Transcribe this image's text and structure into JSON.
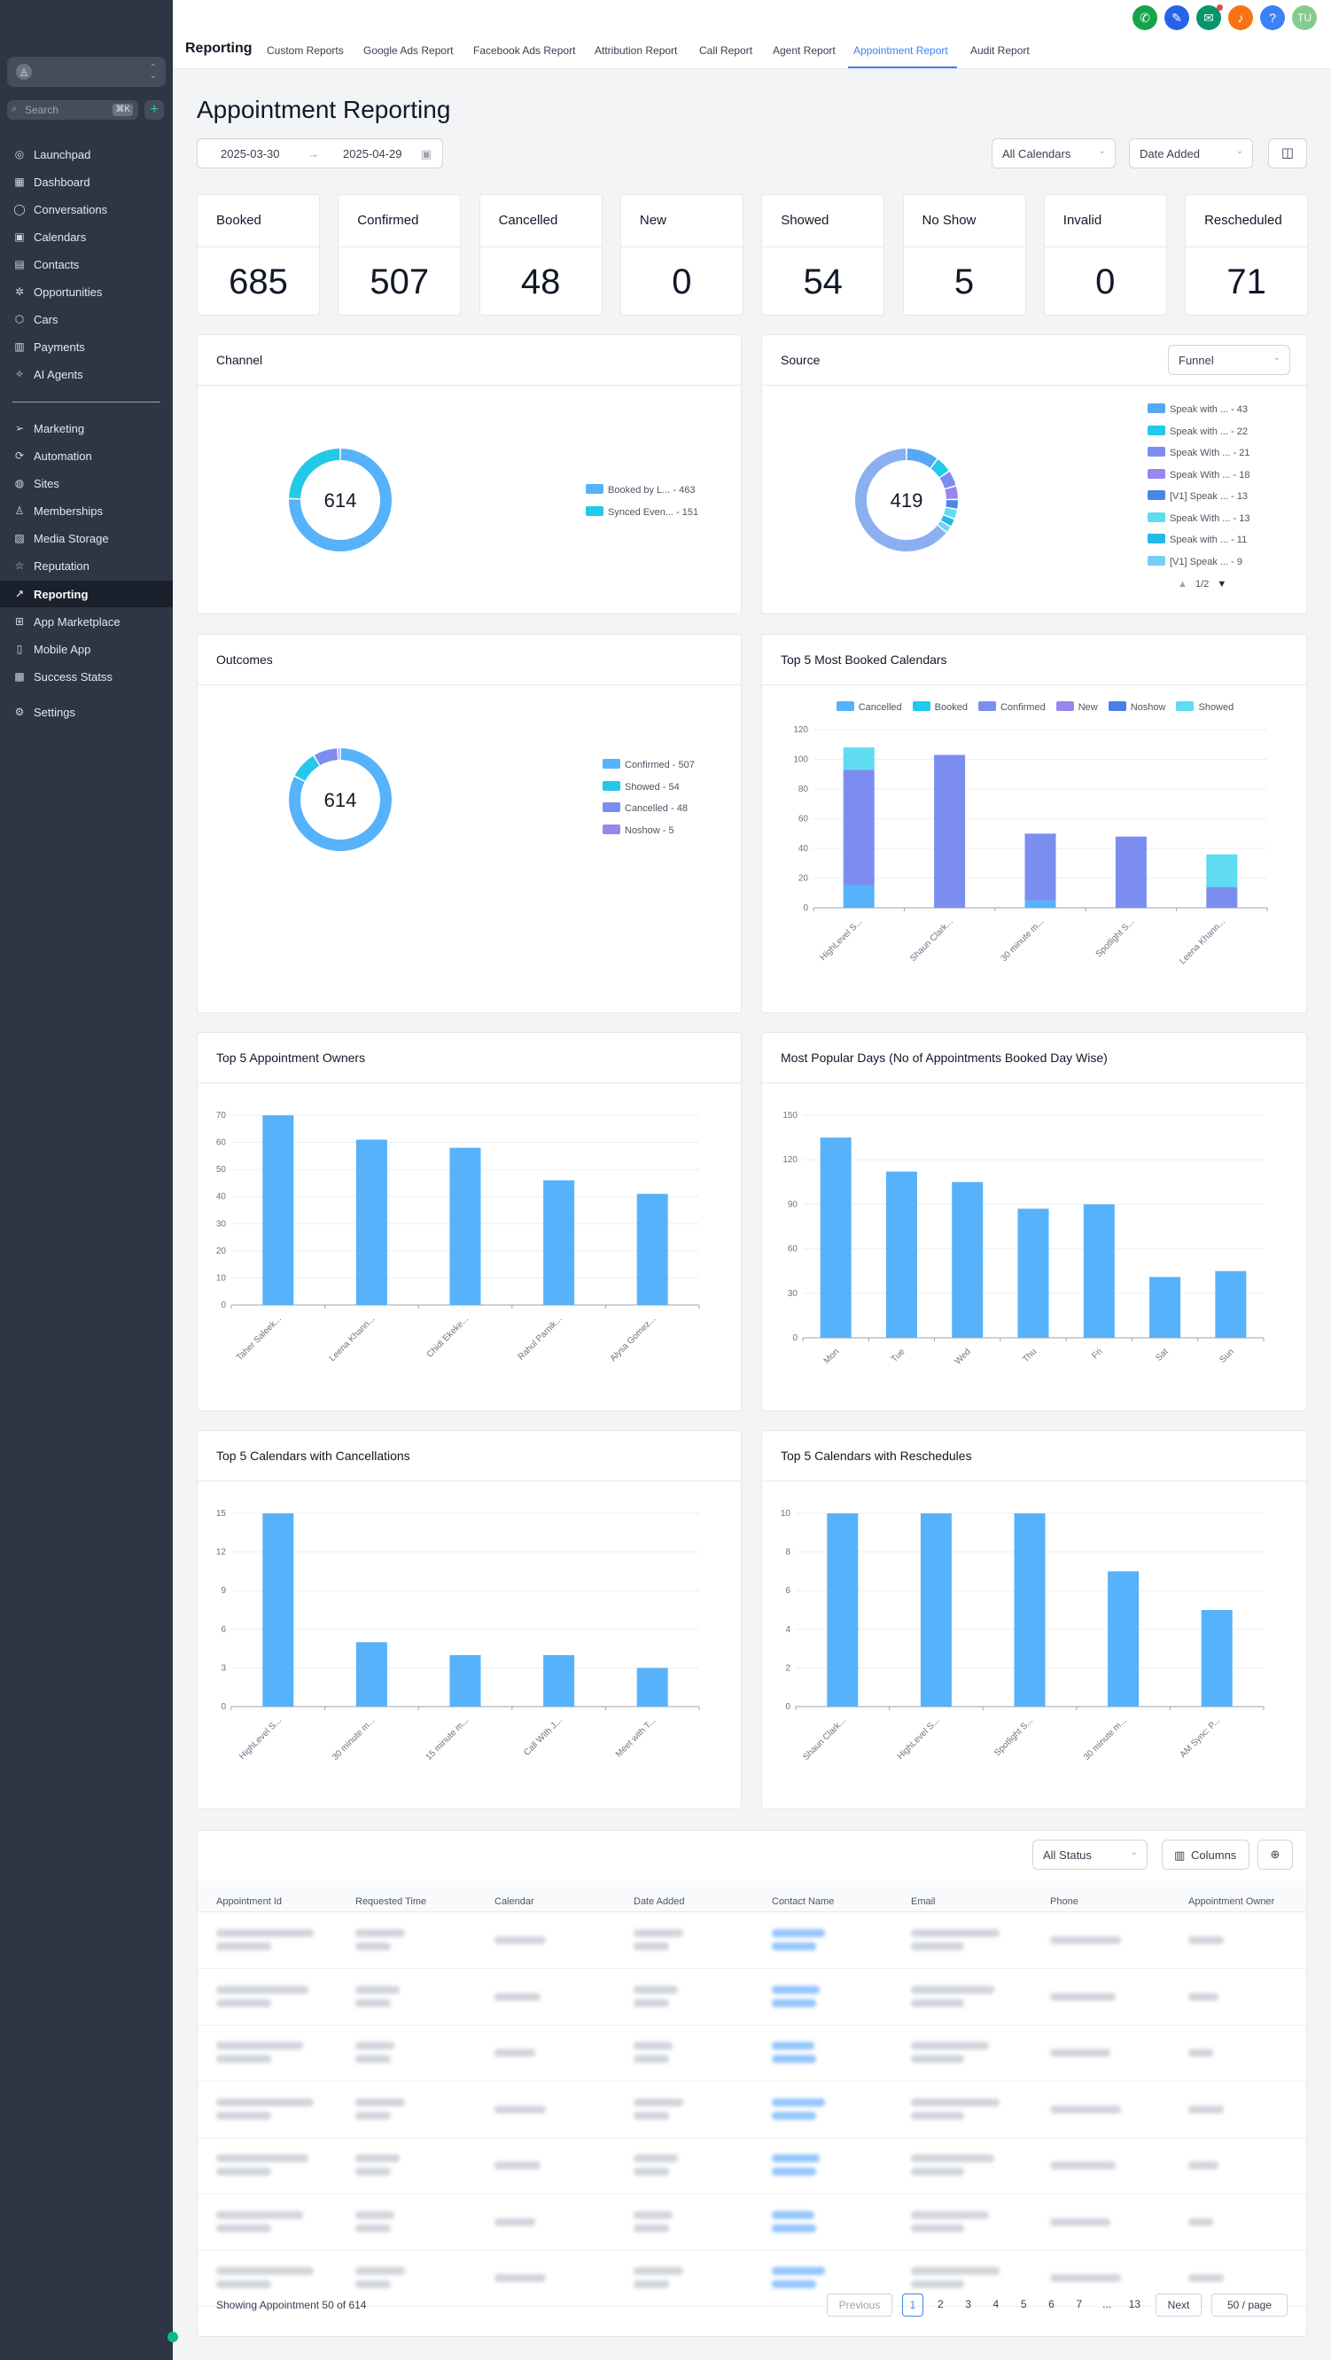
{
  "sidebar": {
    "search_placeholder": "Search",
    "search_shortcut": "⌘K",
    "add_label": "+",
    "items": [
      {
        "label": "Launchpad",
        "icon": "rocket-icon",
        "glyph": "◎",
        "active": false
      },
      {
        "label": "Dashboard",
        "icon": "dashboard-icon",
        "glyph": "▦",
        "active": false
      },
      {
        "label": "Conversations",
        "icon": "chat-icon",
        "glyph": "◯",
        "active": false
      },
      {
        "label": "Calendars",
        "icon": "calendar-icon",
        "glyph": "▣",
        "active": false
      },
      {
        "label": "Contacts",
        "icon": "contacts-icon",
        "glyph": "▤",
        "active": false
      },
      {
        "label": "Opportunities",
        "icon": "opportunities-icon",
        "glyph": "✲",
        "active": false
      },
      {
        "label": "Cars",
        "icon": "cube-icon",
        "glyph": "⬡",
        "active": false
      },
      {
        "label": "Payments",
        "icon": "payments-icon",
        "glyph": "▥",
        "active": false
      },
      {
        "label": "AI Agents",
        "icon": "sparkle-icon",
        "glyph": "✧",
        "active": false
      },
      {
        "label": "Marketing",
        "icon": "send-icon",
        "glyph": "➢",
        "active": false
      },
      {
        "label": "Automation",
        "icon": "automation-icon",
        "glyph": "⟳",
        "active": false
      },
      {
        "label": "Sites",
        "icon": "globe-icon",
        "glyph": "◍",
        "active": false
      },
      {
        "label": "Memberships",
        "icon": "membership-icon",
        "glyph": "♙",
        "active": false
      },
      {
        "label": "Media Storage",
        "icon": "image-icon",
        "glyph": "▨",
        "active": false
      },
      {
        "label": "Reputation",
        "icon": "star-icon",
        "glyph": "☆",
        "active": false
      },
      {
        "label": "Reporting",
        "icon": "trend-icon",
        "glyph": "↗",
        "active": true
      },
      {
        "label": "App Marketplace",
        "icon": "grid-icon",
        "glyph": "⊞",
        "active": false
      },
      {
        "label": "Mobile App",
        "icon": "mobile-icon",
        "glyph": "▯",
        "active": false
      },
      {
        "label": "Success Statss",
        "icon": "stats-icon",
        "glyph": "▩",
        "active": false
      },
      {
        "label": "Settings",
        "icon": "gear-icon",
        "glyph": "⚙",
        "active": false
      }
    ]
  },
  "header": {
    "title": "Reporting",
    "tabs": [
      {
        "label": "Custom Reports",
        "active": false
      },
      {
        "label": "Google Ads Report",
        "active": false
      },
      {
        "label": "Facebook Ads Report",
        "active": false
      },
      {
        "label": "Attribution Report",
        "active": false
      },
      {
        "label": "Call Report",
        "active": false
      },
      {
        "label": "Agent Report",
        "active": false
      },
      {
        "label": "Appointment Report",
        "active": true
      },
      {
        "label": "Audit Report",
        "active": false
      }
    ],
    "icons": [
      {
        "name": "phone-icon",
        "glyph": "✆",
        "color": "#16a34a"
      },
      {
        "name": "link-icon",
        "glyph": "✎",
        "color": "#2563eb"
      },
      {
        "name": "megaphone-icon",
        "glyph": "✉",
        "color": "#059669"
      },
      {
        "name": "bell-icon",
        "glyph": "♪",
        "color": "#f97316"
      },
      {
        "name": "help-icon",
        "glyph": "?",
        "color": "#3b82f6"
      }
    ],
    "avatar": "TU",
    "avatar_color": "#84cc8e"
  },
  "page": {
    "title": "Appointment Reporting",
    "date_start": "2025-03-30",
    "date_end": "2025-04-29",
    "date_arrow": "→",
    "calendar_filter": "All Calendars",
    "date_filter": "Date Added"
  },
  "stats": [
    {
      "label": "Booked",
      "value": "685"
    },
    {
      "label": "Confirmed",
      "value": "507"
    },
    {
      "label": "Cancelled",
      "value": "48"
    },
    {
      "label": "New",
      "value": "0"
    },
    {
      "label": "Showed",
      "value": "54"
    },
    {
      "label": "No Show",
      "value": "5"
    },
    {
      "label": "Invalid",
      "value": "0"
    },
    {
      "label": "Rescheduled",
      "value": "71"
    }
  ],
  "channel": {
    "title": "Channel",
    "total": "614",
    "legend": [
      {
        "label": "Booked by L... - 463",
        "value": 463,
        "color": "#56b2fb"
      },
      {
        "label": "Synced Even... - 151",
        "value": 151,
        "color": "#22c9e8"
      }
    ]
  },
  "source": {
    "title": "Source",
    "total": "419",
    "filter": "Funnel",
    "page": "1/2",
    "legend": [
      {
        "label": "Speak with ... - 43",
        "value": 43,
        "color": "#56a8f5"
      },
      {
        "label": "Speak with ... - 22",
        "value": 22,
        "color": "#22c9e8"
      },
      {
        "label": "Speak With ... - 21",
        "value": 21,
        "color": "#7b8ef0"
      },
      {
        "label": "Speak With ... - 18",
        "value": 18,
        "color": "#9b85ee"
      },
      {
        "label": "[V1] Speak ... - 13",
        "value": 13,
        "color": "#4a86e8"
      },
      {
        "label": "Speak With ... - 13",
        "value": 13,
        "color": "#5fdcef"
      },
      {
        "label": "Speak with ... - 11",
        "value": 11,
        "color": "#22b8e8"
      },
      {
        "label": "[V1] Speak ... - 9",
        "value": 9,
        "color": "#79cdf5"
      }
    ],
    "other_value": 269,
    "other_color": "#8ab0f2"
  },
  "outcomes": {
    "title": "Outcomes",
    "total": "614",
    "legend": [
      {
        "label": "Confirmed - 507",
        "value": 507,
        "color": "#56b2fb"
      },
      {
        "label": "Showed - 54",
        "value": 54,
        "color": "#22c9e8"
      },
      {
        "label": "Cancelled - 48",
        "value": 48,
        "color": "#7b8ef0"
      },
      {
        "label": "Noshow - 5",
        "value": 5,
        "color": "#9b85ee"
      }
    ]
  },
  "chart_data": [
    {
      "id": "top5booked",
      "type": "bar",
      "stacked": true,
      "title": "Top 5 Most Booked Calendars",
      "categories": [
        "HighLevel S...",
        "Shaun Clark...",
        "30 minute m...",
        "Spotlight S...",
        "Leena Khann..."
      ],
      "series": [
        {
          "name": "Cancelled",
          "color": "#56b2fb",
          "values": [
            15,
            0,
            5,
            0,
            0
          ]
        },
        {
          "name": "Booked",
          "color": "#22c9e8",
          "values": [
            0,
            0,
            0,
            0,
            0
          ]
        },
        {
          "name": "Confirmed",
          "color": "#7b8ef0",
          "values": [
            78,
            103,
            45,
            48,
            14
          ]
        },
        {
          "name": "New",
          "color": "#9b85ee",
          "values": [
            0,
            0,
            0,
            0,
            0
          ]
        },
        {
          "name": "Noshow",
          "color": "#4a7fe8",
          "values": [
            0,
            0,
            0,
            0,
            0
          ]
        },
        {
          "name": "Showed",
          "color": "#5fdcef",
          "values": [
            15,
            0,
            0,
            0,
            22
          ]
        }
      ],
      "yticks": [
        0,
        20,
        40,
        60,
        80,
        100,
        120
      ],
      "ylim": [
        0,
        120
      ]
    },
    {
      "id": "owners",
      "type": "bar",
      "title": "Top 5 Appointment Owners",
      "categories": [
        "Taher Saleek...",
        "Leena Khann...",
        "Chidi Ekeke...",
        "Rahul Parnik...",
        "Alysa Gomez..."
      ],
      "values": [
        70,
        61,
        58,
        46,
        41
      ],
      "color": "#56b2fb",
      "yticks": [
        0,
        10,
        20,
        30,
        40,
        50,
        60,
        70
      ],
      "ylim": [
        0,
        70
      ]
    },
    {
      "id": "days",
      "type": "bar",
      "title": "Most Popular Days (No of Appointments Booked Day Wise)",
      "categories": [
        "Mon",
        "Tue",
        "Wed",
        "Thu",
        "Fri",
        "Sat",
        "Sun"
      ],
      "values": [
        135,
        112,
        105,
        87,
        90,
        41,
        45
      ],
      "color": "#56b2fb",
      "yticks": [
        0,
        30,
        60,
        90,
        120,
        150
      ],
      "ylim": [
        0,
        150
      ]
    },
    {
      "id": "cancellations",
      "type": "bar",
      "title": "Top 5 Calendars with Cancellations",
      "categories": [
        "HighLevel S...",
        "30 minute m...",
        "15 minute m...",
        "Call With J...",
        "Meet with T..."
      ],
      "values": [
        15,
        5,
        4,
        4,
        3
      ],
      "color": "#56b2fb",
      "yticks": [
        0,
        3,
        6,
        9,
        12,
        15
      ],
      "ylim": [
        0,
        15
      ]
    },
    {
      "id": "reschedules",
      "type": "bar",
      "title": "Top 5 Calendars with Reschedules",
      "categories": [
        "Shaun Clark...",
        "HighLevel S...",
        "Spotlight S...",
        "30 minute m...",
        "AM Sync: P..."
      ],
      "values": [
        10,
        10,
        10,
        7,
        5
      ],
      "color": "#56b2fb",
      "yticks": [
        0,
        2,
        4,
        6,
        8,
        10
      ],
      "ylim": [
        0,
        10
      ]
    }
  ],
  "table": {
    "status_filter": "All Status",
    "columns_label": "Columns",
    "headers": [
      "Appointment Id",
      "Requested Time",
      "Calendar",
      "Date Added",
      "Contact Name",
      "Email",
      "Phone",
      "Appointment Owner"
    ],
    "footer": "Showing Appointment 50 of 614",
    "pagination": {
      "prev": "Previous",
      "pages": [
        "1",
        "2",
        "3",
        "4",
        "5",
        "6",
        "7",
        "...",
        "13"
      ],
      "next": "Next",
      "per_page": "50 / page",
      "current": "1"
    }
  }
}
